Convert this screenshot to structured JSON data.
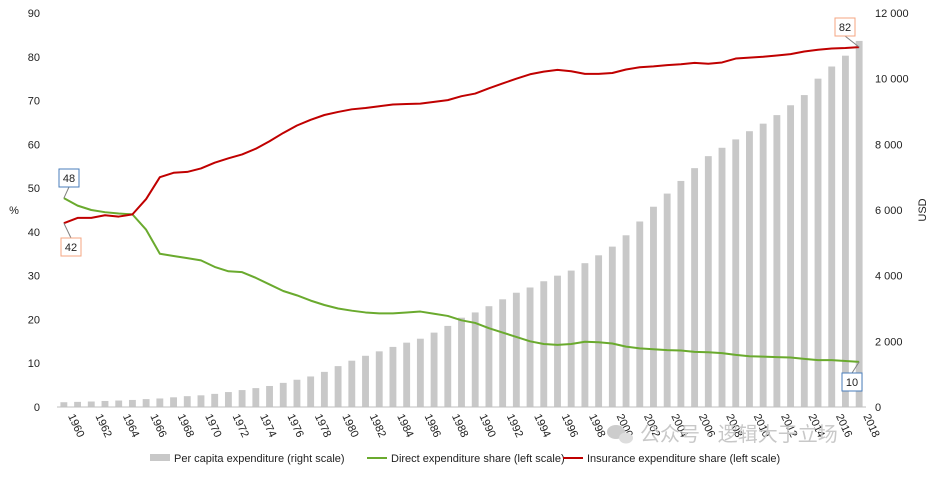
{
  "chart_data": {
    "type": "bar+line",
    "title": "",
    "x": [
      "1960",
      "1961",
      "1962",
      "1963",
      "1964",
      "1965",
      "1966",
      "1967",
      "1968",
      "1969",
      "1970",
      "1971",
      "1972",
      "1973",
      "1974",
      "1975",
      "1976",
      "1977",
      "1978",
      "1979",
      "1980",
      "1981",
      "1982",
      "1983",
      "1984",
      "1985",
      "1986",
      "1987",
      "1988",
      "1989",
      "1990",
      "1991",
      "1992",
      "1993",
      "1994",
      "1995",
      "1996",
      "1997",
      "1998",
      "1999",
      "2000",
      "2001",
      "2002",
      "2003",
      "2004",
      "2005",
      "2006",
      "2007",
      "2008",
      "2009",
      "2010",
      "2011",
      "2012",
      "2013",
      "2014",
      "2015",
      "2016",
      "2017",
      "2018"
    ],
    "x_tick_labels": [
      "1960",
      "1962",
      "1964",
      "1966",
      "1968",
      "1970",
      "1972",
      "1974",
      "1976",
      "1978",
      "1980",
      "1982",
      "1984",
      "1986",
      "1988",
      "1990",
      "1992",
      "1994",
      "1996",
      "1998",
      "2000",
      "2002",
      "2004",
      "2006",
      "2008",
      "2010",
      "2012",
      "2014",
      "2016",
      "2018"
    ],
    "left_axis": {
      "label": "%",
      "ylim": [
        0,
        90
      ],
      "ticks": [
        "0",
        "10",
        "20",
        "30",
        "40",
        "50",
        "60",
        "70",
        "80",
        "90"
      ]
    },
    "right_axis": {
      "label": "USD",
      "ylim": [
        0,
        12000
      ],
      "ticks": [
        "0",
        "2 000",
        "4 000",
        "6 000",
        "8 000",
        "10 000",
        "12 000"
      ]
    },
    "gridlines": false,
    "series": [
      {
        "name": "Per capita expenditure (right scale)",
        "kind": "bar",
        "axis": "right",
        "color": "#c8c8c8",
        "values": [
          146,
          156,
          167,
          183,
          197,
          215,
          240,
          260,
          295,
          330,
          355,
          400,
          455,
          515,
          575,
          640,
          735,
          830,
          930,
          1070,
          1245,
          1410,
          1560,
          1695,
          1830,
          1960,
          2080,
          2265,
          2470,
          2720,
          2880,
          3070,
          3280,
          3480,
          3640,
          3830,
          4000,
          4155,
          4380,
          4620,
          4885,
          5230,
          5650,
          6100,
          6500,
          6885,
          7275,
          7640,
          7895,
          8150,
          8400,
          8630,
          8890,
          9190,
          9500,
          10000,
          10370,
          10700,
          11150
        ]
      },
      {
        "name": "Direct expenditure share (left scale)",
        "kind": "line",
        "axis": "left",
        "color": "#6aaa2e",
        "values": [
          47.7,
          46,
          45,
          44.5,
          44.2,
          44,
          40.5,
          35,
          34.5,
          34,
          33.5,
          32,
          31,
          30.8,
          29.5,
          28,
          26.5,
          25.5,
          24.3,
          23.3,
          22.5,
          22,
          21.6,
          21.4,
          21.4,
          21.6,
          21.8,
          21.3,
          20.8,
          19.8,
          19.2,
          18,
          17,
          16,
          15,
          14.4,
          14.2,
          14.4,
          14.9,
          14.8,
          14.5,
          13.8,
          13.4,
          13.2,
          13,
          12.9,
          12.6,
          12.5,
          12.3,
          11.9,
          11.6,
          11.5,
          11.4,
          11.3,
          11,
          10.7,
          10.7,
          10.5,
          10.3
        ]
      },
      {
        "name": "Insurance expenditure share (left scale)",
        "kind": "line",
        "axis": "left",
        "color": "#c00000",
        "values": [
          42,
          43.2,
          43.2,
          43.8,
          43.5,
          44,
          47.5,
          52.5,
          53.5,
          53.7,
          54.5,
          55.8,
          56.8,
          57.7,
          59,
          60.7,
          62.6,
          64.3,
          65.6,
          66.7,
          67.4,
          68,
          68.3,
          68.7,
          69.1,
          69.2,
          69.3,
          69.7,
          70.1,
          71,
          71.6,
          72.8,
          73.9,
          75,
          76,
          76.6,
          77,
          76.7,
          76.1,
          76.1,
          76.3,
          77.1,
          77.6,
          77.8,
          78.1,
          78.3,
          78.6,
          78.4,
          78.7,
          79.6,
          79.8,
          80,
          80.3,
          80.6,
          81.2,
          81.6,
          81.9,
          82,
          82.2
        ]
      }
    ],
    "annotations": [
      {
        "label": "48",
        "series": "Direct expenditure share (left scale)",
        "year": "1960",
        "value": 48,
        "border": "#4a7ebb"
      },
      {
        "label": "42",
        "series": "Insurance expenditure share (left scale)",
        "year": "1960",
        "value": 42,
        "border": "#f4a582"
      },
      {
        "label": "82",
        "series": "Insurance expenditure share (left scale)",
        "year": "2018",
        "value": 82,
        "border": "#f4a582"
      },
      {
        "label": "10",
        "series": "Direct expenditure share (left scale)",
        "year": "2018",
        "value": 10,
        "border": "#4a7ebb"
      }
    ],
    "legend": {
      "placement": "bottom",
      "items": [
        {
          "label": "Per capita expenditure (right scale)",
          "kind": "bar",
          "color": "#c8c8c8"
        },
        {
          "label": "Direct expenditure share (left scale)",
          "kind": "line",
          "color": "#6aaa2e"
        },
        {
          "label": "Insurance expenditure share (left scale)",
          "kind": "line",
          "color": "#c00000"
        }
      ]
    }
  },
  "watermark": {
    "text": "公众号 · 逻辑大于立场",
    "icon": "wechat-icon"
  }
}
